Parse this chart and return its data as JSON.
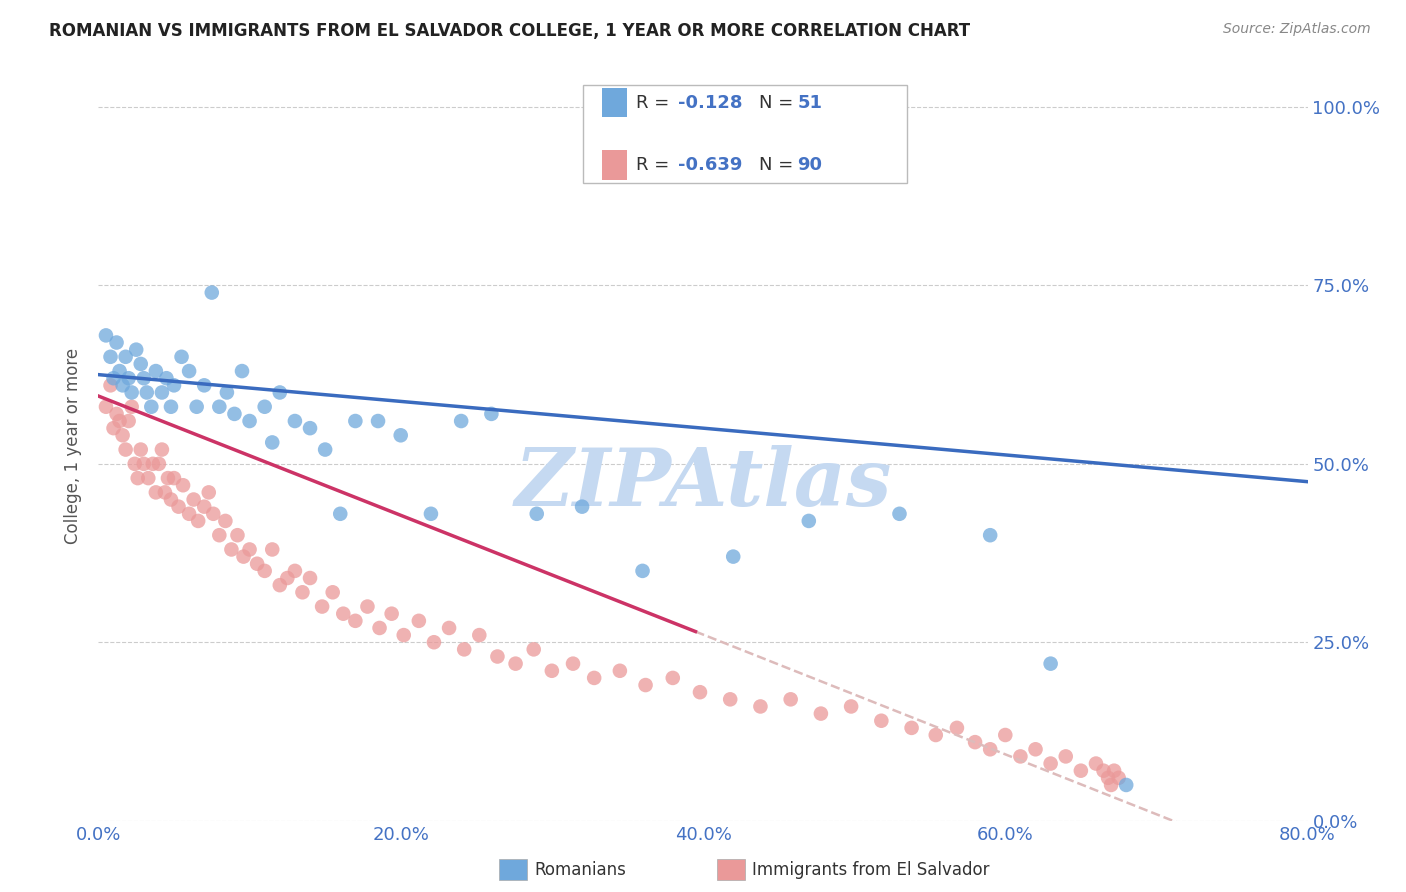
{
  "title": "ROMANIAN VS IMMIGRANTS FROM EL SALVADOR COLLEGE, 1 YEAR OR MORE CORRELATION CHART",
  "source": "Source: ZipAtlas.com",
  "xlabel_ticks": [
    "0.0%",
    "20.0%",
    "40.0%",
    "60.0%",
    "80.0%"
  ],
  "ylabel_ticks": [
    "0.0%",
    "25.0%",
    "50.0%",
    "75.0%",
    "100.0%"
  ],
  "ylabel": "College, 1 year or more",
  "xlim": [
    0.0,
    0.8
  ],
  "ylim": [
    0.0,
    1.05
  ],
  "legend_romanian_label": "Romanians",
  "legend_salvador_label": "Immigrants from El Salvador",
  "romanian_color": "#6fa8dc",
  "salvador_color": "#ea9999",
  "trendline_romanian_color": "#3a6bbf",
  "trendline_salvador_color": "#cc3366",
  "trendline_salvador_dashed_color": "#ddbbbb",
  "watermark": "ZIPAtlas",
  "watermark_color": "#c5d9f1",
  "background_color": "#ffffff",
  "romanian_scatter": {
    "x": [
      0.005,
      0.008,
      0.01,
      0.012,
      0.014,
      0.016,
      0.018,
      0.02,
      0.022,
      0.025,
      0.028,
      0.03,
      0.032,
      0.035,
      0.038,
      0.042,
      0.045,
      0.048,
      0.05,
      0.055,
      0.06,
      0.065,
      0.07,
      0.075,
      0.08,
      0.085,
      0.09,
      0.095,
      0.1,
      0.11,
      0.115,
      0.12,
      0.13,
      0.14,
      0.15,
      0.16,
      0.17,
      0.185,
      0.2,
      0.22,
      0.24,
      0.26,
      0.29,
      0.32,
      0.36,
      0.42,
      0.47,
      0.53,
      0.59,
      0.63,
      0.68
    ],
    "y": [
      0.68,
      0.65,
      0.62,
      0.67,
      0.63,
      0.61,
      0.65,
      0.62,
      0.6,
      0.66,
      0.64,
      0.62,
      0.6,
      0.58,
      0.63,
      0.6,
      0.62,
      0.58,
      0.61,
      0.65,
      0.63,
      0.58,
      0.61,
      0.74,
      0.58,
      0.6,
      0.57,
      0.63,
      0.56,
      0.58,
      0.53,
      0.6,
      0.56,
      0.55,
      0.52,
      0.43,
      0.56,
      0.56,
      0.54,
      0.43,
      0.56,
      0.57,
      0.43,
      0.44,
      0.35,
      0.37,
      0.42,
      0.43,
      0.4,
      0.22,
      0.05
    ]
  },
  "salvador_scatter": {
    "x": [
      0.005,
      0.008,
      0.01,
      0.012,
      0.014,
      0.016,
      0.018,
      0.02,
      0.022,
      0.024,
      0.026,
      0.028,
      0.03,
      0.033,
      0.036,
      0.038,
      0.04,
      0.042,
      0.044,
      0.046,
      0.048,
      0.05,
      0.053,
      0.056,
      0.06,
      0.063,
      0.066,
      0.07,
      0.073,
      0.076,
      0.08,
      0.084,
      0.088,
      0.092,
      0.096,
      0.1,
      0.105,
      0.11,
      0.115,
      0.12,
      0.125,
      0.13,
      0.135,
      0.14,
      0.148,
      0.155,
      0.162,
      0.17,
      0.178,
      0.186,
      0.194,
      0.202,
      0.212,
      0.222,
      0.232,
      0.242,
      0.252,
      0.264,
      0.276,
      0.288,
      0.3,
      0.314,
      0.328,
      0.345,
      0.362,
      0.38,
      0.398,
      0.418,
      0.438,
      0.458,
      0.478,
      0.498,
      0.518,
      0.538,
      0.554,
      0.568,
      0.58,
      0.59,
      0.6,
      0.61,
      0.62,
      0.63,
      0.64,
      0.65,
      0.66,
      0.665,
      0.668,
      0.67,
      0.672,
      0.675
    ],
    "y": [
      0.58,
      0.61,
      0.55,
      0.57,
      0.56,
      0.54,
      0.52,
      0.56,
      0.58,
      0.5,
      0.48,
      0.52,
      0.5,
      0.48,
      0.5,
      0.46,
      0.5,
      0.52,
      0.46,
      0.48,
      0.45,
      0.48,
      0.44,
      0.47,
      0.43,
      0.45,
      0.42,
      0.44,
      0.46,
      0.43,
      0.4,
      0.42,
      0.38,
      0.4,
      0.37,
      0.38,
      0.36,
      0.35,
      0.38,
      0.33,
      0.34,
      0.35,
      0.32,
      0.34,
      0.3,
      0.32,
      0.29,
      0.28,
      0.3,
      0.27,
      0.29,
      0.26,
      0.28,
      0.25,
      0.27,
      0.24,
      0.26,
      0.23,
      0.22,
      0.24,
      0.21,
      0.22,
      0.2,
      0.21,
      0.19,
      0.2,
      0.18,
      0.17,
      0.16,
      0.17,
      0.15,
      0.16,
      0.14,
      0.13,
      0.12,
      0.13,
      0.11,
      0.1,
      0.12,
      0.09,
      0.1,
      0.08,
      0.09,
      0.07,
      0.08,
      0.07,
      0.06,
      0.05,
      0.07,
      0.06
    ]
  },
  "trendline_romanian": {
    "x": [
      0.0,
      0.8
    ],
    "y": [
      0.625,
      0.475
    ]
  },
  "trendline_salvador_solid": {
    "x": [
      0.0,
      0.395
    ],
    "y": [
      0.595,
      0.265
    ]
  },
  "trendline_salvador_dashed": {
    "x": [
      0.395,
      0.8
    ],
    "y": [
      0.265,
      -0.075
    ]
  }
}
